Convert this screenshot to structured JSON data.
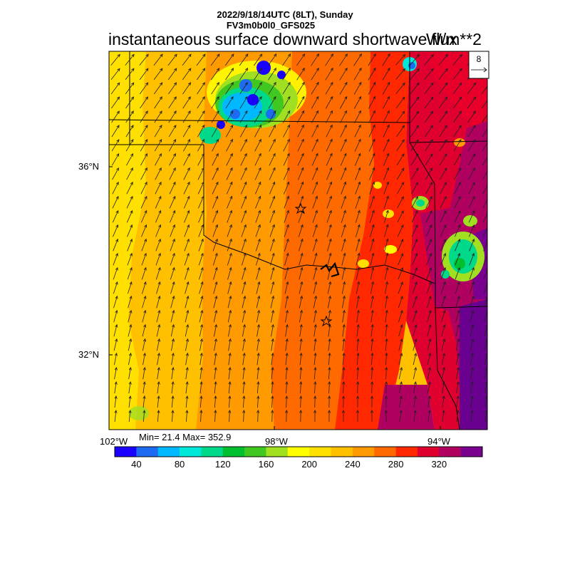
{
  "header": {
    "run_date": "2022/9/18/14UTC (8LT), Sunday",
    "model": "FV3m0b0l0_GFS025",
    "title": "instantaneous surface downward shortwave flux",
    "units": "W/m**2"
  },
  "stats": {
    "min_max": "Min= 21.4 Max= 352.9"
  },
  "wind_reference": {
    "value": "8"
  },
  "axes": {
    "lat_labels": [
      "36°N",
      "32°N"
    ],
    "lon_labels": [
      "102°W",
      "98°W",
      "94°W"
    ]
  },
  "map": {
    "cities": [
      "star",
      "star"
    ],
    "field_levels": [
      20,
      40,
      60,
      80,
      100,
      120,
      140,
      160,
      180,
      200,
      220,
      240,
      260,
      280,
      300,
      320,
      340
    ]
  },
  "colorbar": {
    "colors": [
      "#1a00ff",
      "#1c6bf0",
      "#00b8ff",
      "#00e8d8",
      "#00d88a",
      "#00c030",
      "#40c820",
      "#a0e020",
      "#ffff00",
      "#ffe000",
      "#ffc000",
      "#ff9a00",
      "#ff6a00",
      "#ff2800",
      "#e00030",
      "#b00060",
      "#7a0090"
    ],
    "labels": [
      "40",
      "80",
      "120",
      "160",
      "200",
      "240",
      "280",
      "320"
    ]
  }
}
